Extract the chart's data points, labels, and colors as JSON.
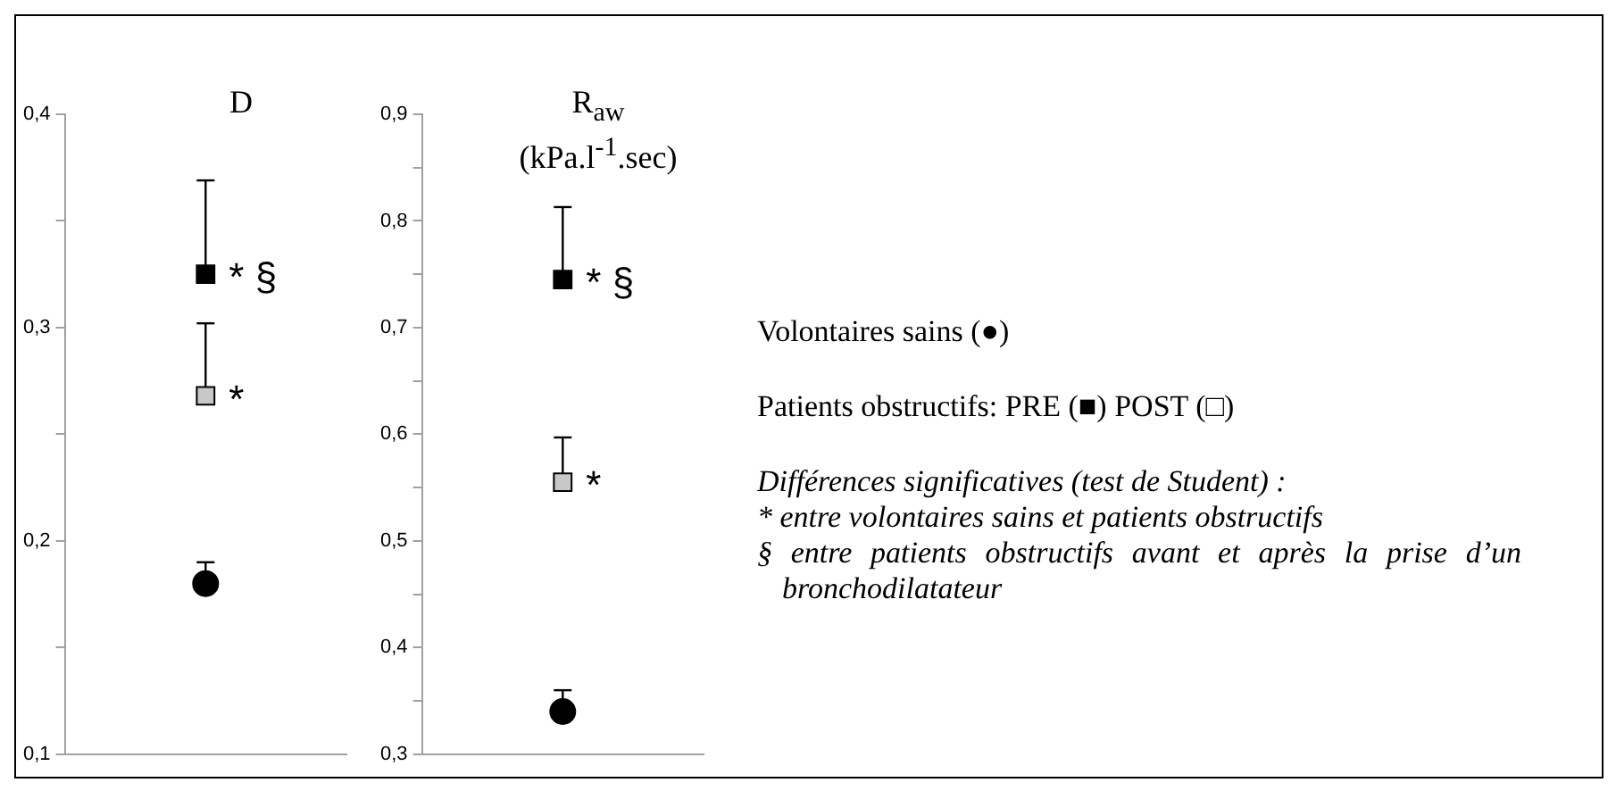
{
  "chart_data": [
    {
      "type": "scatter",
      "title": "D",
      "categories": [
        null
      ],
      "series": [
        {
          "color": "#000000",
          "marker": "circle",
          "values": [
            0.18
          ],
          "errors": [
            [
              0.18,
              0.19
            ]
          ]
        },
        {
          "color": "#c8c8c8",
          "marker": "square",
          "values": [
            0.268
          ],
          "errors": [
            [
              0.268,
              0.302
            ]
          ],
          "value_labels": [
            "*"
          ]
        },
        {
          "color": "#000000",
          "marker": "square",
          "values": [
            0.325
          ],
          "errors": [
            [
              0.325,
              0.369
            ]
          ],
          "value_labels": [
            "* §"
          ]
        }
      ],
      "ylim": [
        0.1,
        0.4
      ],
      "yticks": [
        {
          "value": 0.1,
          "label": "0,1"
        },
        {
          "value": 0.15,
          "label": null
        },
        {
          "value": 0.2,
          "label": "0,2"
        },
        {
          "value": 0.25,
          "label": null
        },
        {
          "value": 0.3,
          "label": "0,3"
        },
        {
          "value": 0.35,
          "label": null
        },
        {
          "value": 0.4,
          "label": "0,4"
        }
      ],
      "grid": false,
      "tick_labels": "y"
    },
    {
      "type": "scatter",
      "title": "R$_{aw}$",
      "subtitle": "(kPa.l$^{-1}$.sec)",
      "categories": [
        null
      ],
      "series": [
        {
          "color": "#000000",
          "marker": "circle",
          "values": [
            0.34
          ],
          "errors": [
            [
              0.34,
              0.36
            ]
          ]
        },
        {
          "color": "#c8c8c8",
          "marker": "square",
          "values": [
            0.555
          ],
          "errors": [
            [
              0.555,
              0.597
            ]
          ],
          "value_labels": [
            "*"
          ]
        },
        {
          "color": "#000000",
          "marker": "square",
          "values": [
            0.745
          ],
          "errors": [
            [
              0.745,
              0.813
            ]
          ],
          "value_labels": [
            "* §"
          ]
        }
      ],
      "ylim": [
        0.3,
        0.9
      ],
      "yticks": [
        {
          "value": 0.3,
          "label": "0,3"
        },
        {
          "value": 0.35,
          "label": null
        },
        {
          "value": 0.4,
          "label": "0,4"
        },
        {
          "value": 0.45,
          "label": null
        },
        {
          "value": 0.5,
          "label": "0,5"
        },
        {
          "value": 0.55,
          "label": null
        },
        {
          "value": 0.6,
          "label": "0,6"
        },
        {
          "value": 0.65,
          "label": null
        },
        {
          "value": 0.7,
          "label": "0,7"
        },
        {
          "value": 0.75,
          "label": null
        },
        {
          "value": 0.8,
          "label": "0,8"
        },
        {
          "value": 0.85,
          "label": null
        },
        {
          "value": 0.9,
          "label": "0,9"
        }
      ],
      "grid": false,
      "tick_labels": "y"
    },
    {
      "type": "other",
      "annotations": [
        "Volontaires sains (●)",
        "Patients obstructifs:  PRE (■)  POST (□)",
        "Différences significatives (test de Student) :",
        "* entre volontaires sains et patients obstructifs",
        "§ entre patients obstructifs avant et après la prise d’un bronchodilatateur"
      ]
    }
  ]
}
